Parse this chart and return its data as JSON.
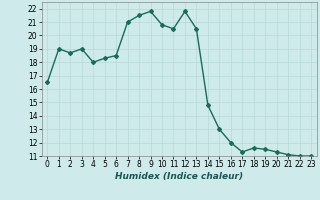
{
  "x": [
    0,
    1,
    2,
    3,
    4,
    5,
    6,
    7,
    8,
    9,
    10,
    11,
    12,
    13,
    14,
    15,
    16,
    17,
    18,
    19,
    20,
    21,
    22,
    23
  ],
  "y": [
    16.5,
    19.0,
    18.7,
    19.0,
    18.0,
    18.3,
    18.5,
    21.0,
    21.5,
    21.8,
    20.8,
    20.5,
    21.8,
    20.5,
    14.8,
    13.0,
    12.0,
    11.3,
    11.6,
    11.5,
    11.3,
    11.1,
    11.0,
    11.0
  ],
  "line_color": "#1a6b5a",
  "marker": "D",
  "markersize": 2,
  "xlabel": "Humidex (Indice chaleur)",
  "xlim": [
    -0.5,
    23.5
  ],
  "ylim": [
    11,
    22.5
  ],
  "yticks": [
    11,
    12,
    13,
    14,
    15,
    16,
    17,
    18,
    19,
    20,
    21,
    22
  ],
  "xticks": [
    0,
    1,
    2,
    3,
    4,
    5,
    6,
    7,
    8,
    9,
    10,
    11,
    12,
    13,
    14,
    15,
    16,
    17,
    18,
    19,
    20,
    21,
    22,
    23
  ],
  "bg_color": "#ceeaea",
  "grid_color": "#b8d8d8",
  "fig_bg": "#ceeaea",
  "line_width": 1.0,
  "tick_fontsize": 5.5,
  "xlabel_fontsize": 6.5
}
